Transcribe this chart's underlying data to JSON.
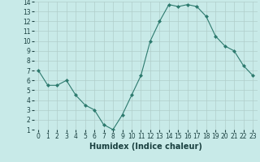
{
  "x": [
    0,
    1,
    2,
    3,
    4,
    5,
    6,
    7,
    8,
    9,
    10,
    11,
    12,
    13,
    14,
    15,
    16,
    17,
    18,
    19,
    20,
    21,
    22,
    23
  ],
  "y": [
    7.0,
    5.5,
    5.5,
    6.0,
    4.5,
    3.5,
    3.0,
    1.5,
    1.0,
    2.5,
    4.5,
    6.5,
    10.0,
    12.0,
    13.7,
    13.5,
    13.7,
    13.5,
    12.5,
    10.5,
    9.5,
    9.0,
    7.5,
    6.5
  ],
  "xlabel": "Humidex (Indice chaleur)",
  "ylim": [
    1,
    14
  ],
  "xlim_min": -0.5,
  "xlim_max": 23.5,
  "yticks": [
    1,
    2,
    3,
    4,
    5,
    6,
    7,
    8,
    9,
    10,
    11,
    12,
    13,
    14
  ],
  "xticks": [
    0,
    1,
    2,
    3,
    4,
    5,
    6,
    7,
    8,
    9,
    10,
    11,
    12,
    13,
    14,
    15,
    16,
    17,
    18,
    19,
    20,
    21,
    22,
    23
  ],
  "xtick_labels": [
    "0",
    "1",
    "2",
    "3",
    "4",
    "5",
    "6",
    "7",
    "8",
    "9",
    "10",
    "11",
    "12",
    "13",
    "14",
    "15",
    "16",
    "17",
    "18",
    "19",
    "20",
    "21",
    "22",
    "23"
  ],
  "line_color": "#2d7a6e",
  "marker": "D",
  "marker_size": 2.0,
  "linewidth": 0.8,
  "background_color": "#c8eae8",
  "grid_color": "#b0ceca",
  "xlabel_fontsize": 7,
  "tick_fontsize": 5.5,
  "xlabel_fontweight": "bold"
}
